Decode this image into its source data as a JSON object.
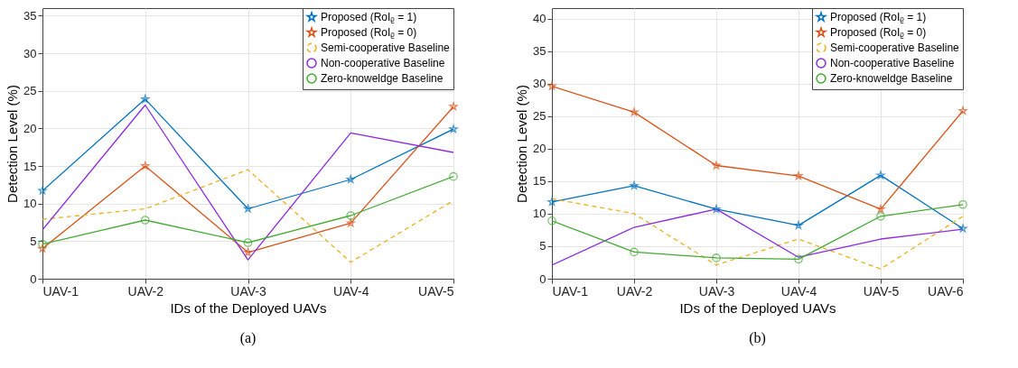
{
  "chart_data": [
    {
      "type": "line",
      "xlabel": "IDs of the Deployed UAVs",
      "ylabel": "Detection Level (%)",
      "categories": [
        "UAV-1",
        "UAV-2",
        "UAV-3",
        "UAV-4",
        "UAV-5"
      ],
      "ylim": [
        0,
        36
      ],
      "yticks": [
        0,
        5,
        10,
        15,
        20,
        25,
        30,
        35
      ],
      "grid": true,
      "legend": "top right",
      "annotations": [
        "(a)"
      ],
      "series": [
        {
          "name": "Proposed (RoIᵨ = 1)",
          "color": "#0072bd",
          "marker": "star",
          "line_style": "solid",
          "values": [
            11.7,
            23.9,
            9.3,
            13.2,
            19.9
          ]
        },
        {
          "name": "Proposed (RoIᵨ = 0)",
          "color": "#d95319",
          "marker": "star",
          "line_style": "solid",
          "values": [
            4.0,
            15.0,
            3.5,
            7.4,
            22.9
          ]
        },
        {
          "name": "Semi-cooperative Baseline",
          "color": "#edb120",
          "marker": "none",
          "line_style": "dashed",
          "values": [
            7.9,
            9.3,
            14.5,
            2.2,
            10.4
          ]
        },
        {
          "name": "Non-cooperative Baseline",
          "color": "#8a2be2",
          "marker": "none",
          "line_style": "solid",
          "values": [
            6.5,
            23.1,
            2.5,
            19.4,
            16.8
          ]
        },
        {
          "name": "Zero-knoweldge Baseline",
          "color": "#44aa33",
          "marker": "circle",
          "line_style": "solid",
          "values": [
            4.6,
            7.8,
            4.8,
            8.4,
            13.6
          ]
        }
      ]
    },
    {
      "type": "line",
      "xlabel": "IDs of the Deployed UAVs",
      "ylabel": "Detection Level (%)",
      "categories": [
        "UAV-1",
        "UAV-2",
        "UAV-3",
        "UAV-4",
        "UAV-5",
        "UAV-6"
      ],
      "ylim": [
        0,
        41.6
      ],
      "yticks": [
        0,
        5,
        10,
        15,
        20,
        25,
        30,
        35,
        40
      ],
      "grid": true,
      "legend": "top right",
      "annotations": [
        "(b)"
      ],
      "series": [
        {
          "name": "Proposed (RoIᵨ = 1)",
          "color": "#0072bd",
          "marker": "star",
          "line_style": "solid",
          "values": [
            11.8,
            14.3,
            10.7,
            8.2,
            15.9,
            7.7
          ]
        },
        {
          "name": "Proposed (RoIᵨ = 0)",
          "color": "#d95319",
          "marker": "star",
          "line_style": "solid",
          "values": [
            29.6,
            25.6,
            17.4,
            15.8,
            10.7,
            25.8
          ]
        },
        {
          "name": "Semi-cooperative Baseline",
          "color": "#edb120",
          "marker": "none",
          "line_style": "dashed",
          "values": [
            12.3,
            10.0,
            2.1,
            6.1,
            1.5,
            9.6
          ]
        },
        {
          "name": "Non-cooperative Baseline",
          "color": "#8a2be2",
          "marker": "none",
          "line_style": "solid",
          "values": [
            2.1,
            7.9,
            10.7,
            3.3,
            6.1,
            7.6
          ]
        },
        {
          "name": "Zero-knoweldge Baseline",
          "color": "#44aa33",
          "marker": "circle",
          "line_style": "solid",
          "values": [
            8.9,
            4.1,
            3.2,
            3.0,
            9.6,
            11.4
          ]
        }
      ]
    }
  ]
}
